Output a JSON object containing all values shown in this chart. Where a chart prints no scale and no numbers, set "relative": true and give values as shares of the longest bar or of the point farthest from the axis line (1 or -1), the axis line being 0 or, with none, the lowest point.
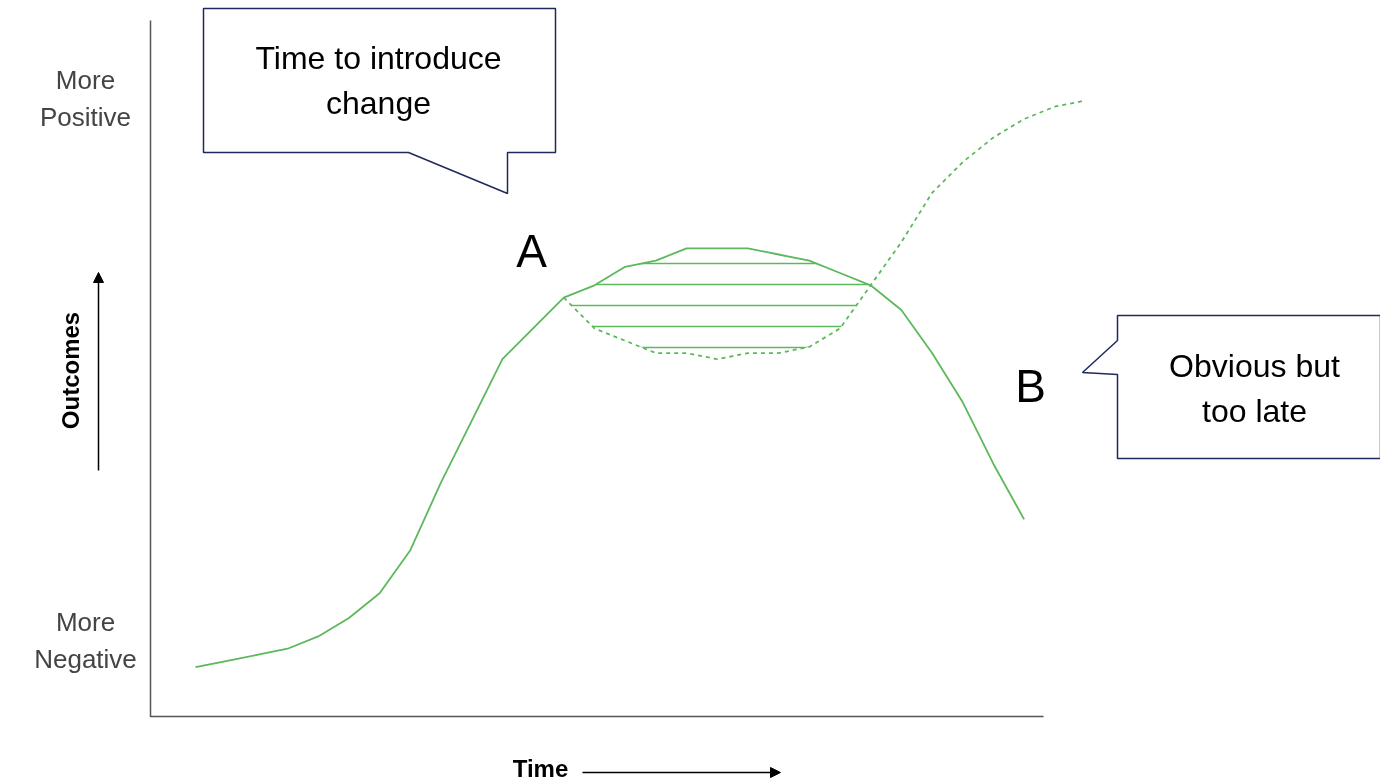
{
  "chart_data": {
    "type": "line",
    "relative": true,
    "xlabel": "Time",
    "ylabel": "Outcomes",
    "categories": [
      null,
      null,
      null,
      null,
      null,
      null,
      null,
      null,
      null,
      null,
      null,
      null,
      null,
      null,
      null,
      null,
      null,
      null,
      null,
      null,
      null,
      null,
      null,
      null,
      null,
      null,
      null,
      null,
      null,
      null
    ],
    "series": [
      {
        "color": "#5cb85c",
        "line_style": "solid",
        "values": [
          0.08,
          0.09,
          0.1,
          0.11,
          0.13,
          0.16,
          0.2,
          0.27,
          0.38,
          0.48,
          0.58,
          0.63,
          0.68,
          0.7,
          0.73,
          0.74,
          0.76,
          0.76,
          0.76,
          0.75,
          0.74,
          0.72,
          0.7,
          0.66,
          0.59,
          0.51,
          0.41,
          0.32,
          null,
          null
        ]
      },
      {
        "color": "#5cb85c",
        "line_style": "dashed",
        "values": [
          null,
          null,
          null,
          null,
          null,
          null,
          null,
          null,
          null,
          null,
          null,
          null,
          0.68,
          0.63,
          0.61,
          0.59,
          0.59,
          0.58,
          0.59,
          0.59,
          0.6,
          0.63,
          0.7,
          0.77,
          0.85,
          0.9,
          0.94,
          0.97,
          0.99,
          1.0
        ],
        "lower": [
          null,
          null,
          null,
          null,
          null,
          null,
          null,
          null,
          null,
          null,
          null,
          null,
          0.68,
          0.63,
          0.61,
          0.59,
          0.59,
          0.58,
          0.59,
          0.59,
          0.6,
          0.63,
          0.7,
          null,
          null,
          null,
          null,
          null,
          null,
          null
        ],
        "upper": [
          null,
          null,
          null,
          null,
          null,
          null,
          null,
          null,
          null,
          null,
          null,
          null,
          0.68,
          0.7,
          0.73,
          0.74,
          0.76,
          0.76,
          0.76,
          0.75,
          0.74,
          0.72,
          0.7,
          null,
          null,
          null,
          null,
          null,
          null,
          null
        ]
      }
    ],
    "annotations": [
      "More\nPositive",
      "More\nNegative",
      "Time to introduce\nchange",
      "A",
      "B",
      "Obvious but\ntoo late"
    ]
  }
}
